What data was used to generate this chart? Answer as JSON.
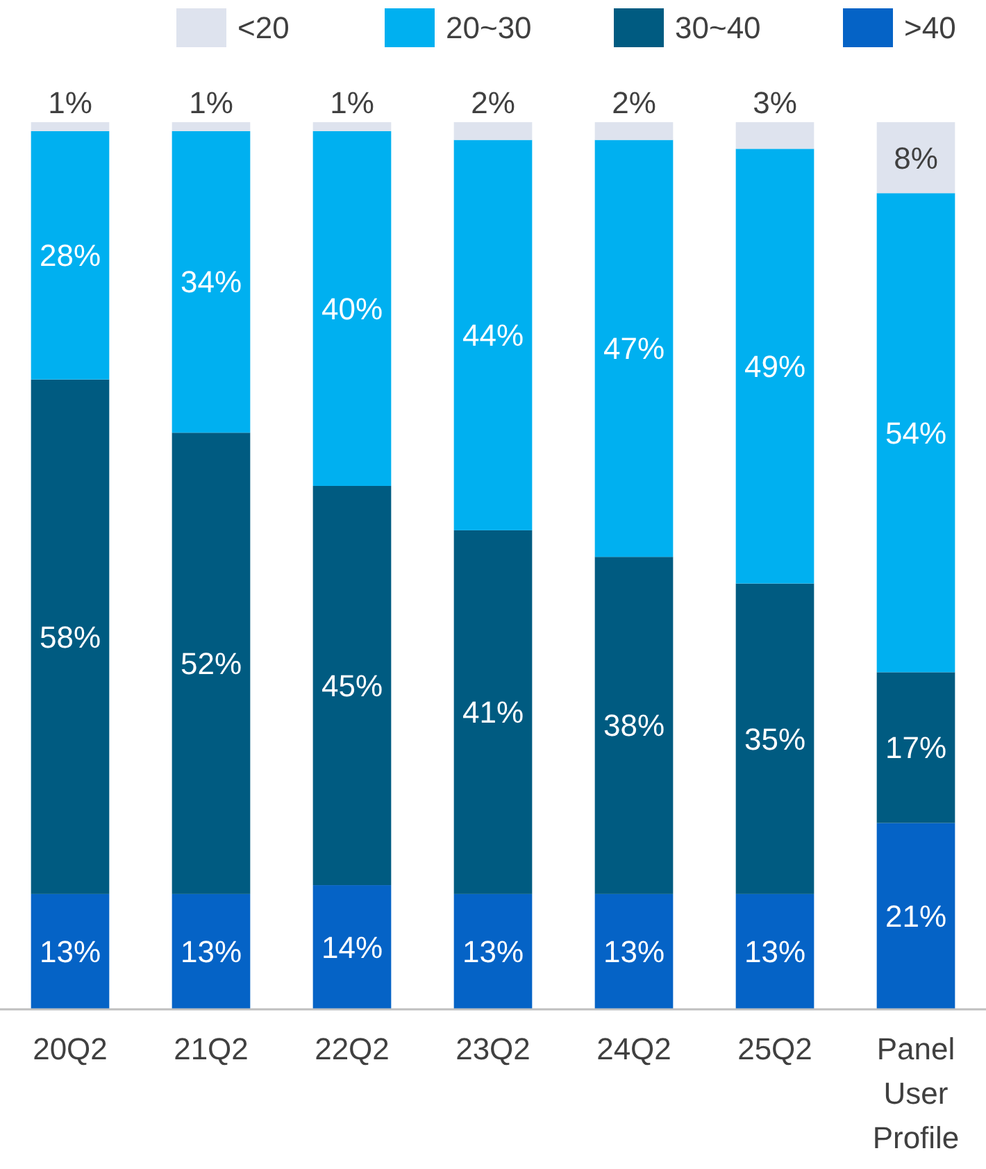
{
  "chart_data": {
    "type": "bar",
    "stacked": true,
    "legend": "top",
    "categories": [
      "20Q2",
      "21Q2",
      "22Q2",
      "23Q2",
      "24Q2",
      "25Q2",
      "Panel User Profile"
    ],
    "series": [
      {
        "name": ">40",
        "color": "#0563c6",
        "values": [
          13,
          13,
          14,
          13,
          13,
          13,
          21
        ],
        "value_labels": [
          "13%",
          "13%",
          "14%",
          "13%",
          "13%",
          "13%",
          "21%"
        ]
      },
      {
        "name": "30~40",
        "color": "#005b81",
        "values": [
          58,
          52,
          45,
          41,
          38,
          35,
          17
        ],
        "value_labels": [
          "58%",
          "52%",
          "45%",
          "41%",
          "38%",
          "35%",
          "17%"
        ]
      },
      {
        "name": "20~30",
        "color": "#00b0f0",
        "values": [
          28,
          34,
          40,
          44,
          47,
          49,
          54
        ],
        "value_labels": [
          "28%",
          "34%",
          "40%",
          "44%",
          "47%",
          "49%",
          "54%"
        ]
      },
      {
        "name": "<20",
        "color": "#dee3ee",
        "values": [
          1,
          1,
          1,
          2,
          2,
          3,
          8
        ],
        "value_labels": [
          "1%",
          "1%",
          "1%",
          "2%",
          "2%",
          "3%",
          "8%"
        ]
      }
    ],
    "tick_labels": "x"
  }
}
